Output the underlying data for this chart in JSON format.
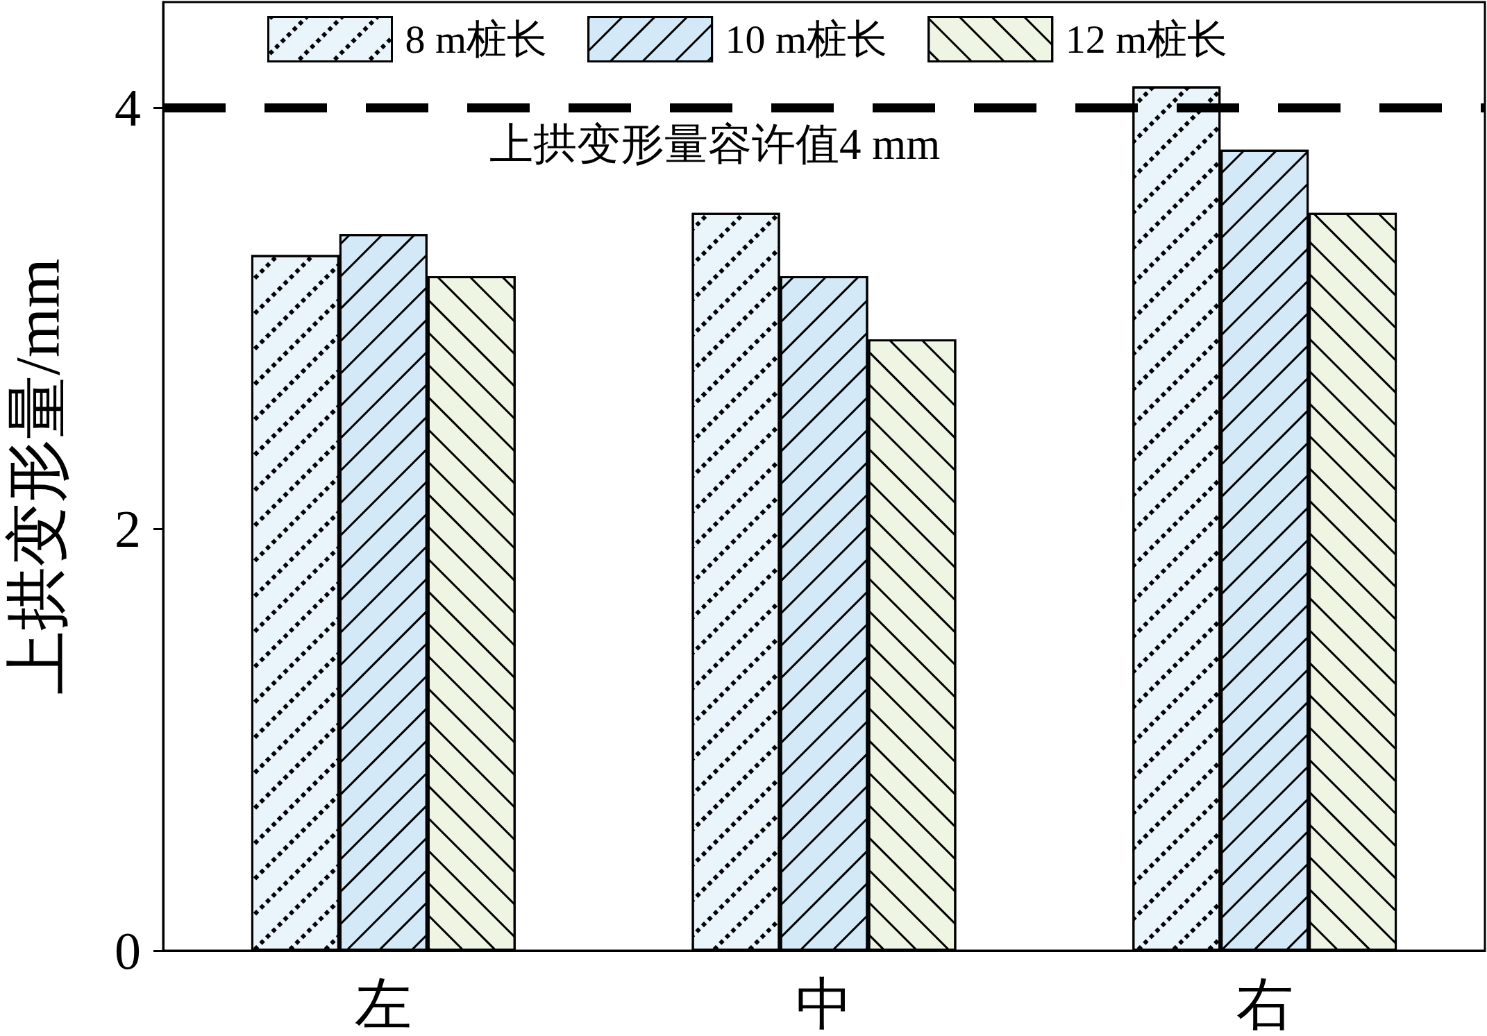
{
  "chart_data": {
    "type": "bar",
    "ylabel": "上拱变形量/mm",
    "categories": [
      "左",
      "中",
      "右"
    ],
    "series": [
      {
        "name": "8 m桩长",
        "color": "#eaf4fb",
        "values": [
          3.3,
          3.5,
          4.1
        ]
      },
      {
        "name": "10 m桩长",
        "color": "#d3e9f7",
        "values": [
          3.4,
          3.2,
          3.8
        ]
      },
      {
        "name": "12 m桩长",
        "color": "#eef5e3",
        "values": [
          3.2,
          2.9,
          3.5
        ]
      }
    ],
    "ylim": [
      0,
      4.5
    ],
    "yticks": [
      0,
      2,
      4
    ],
    "grid": false,
    "legend": "top",
    "ref_lines": [
      {
        "axis": "y",
        "value": 4,
        "label": "上拱变形量容许值4 mm",
        "color": "#000000",
        "line_style": "dashed"
      }
    ]
  }
}
